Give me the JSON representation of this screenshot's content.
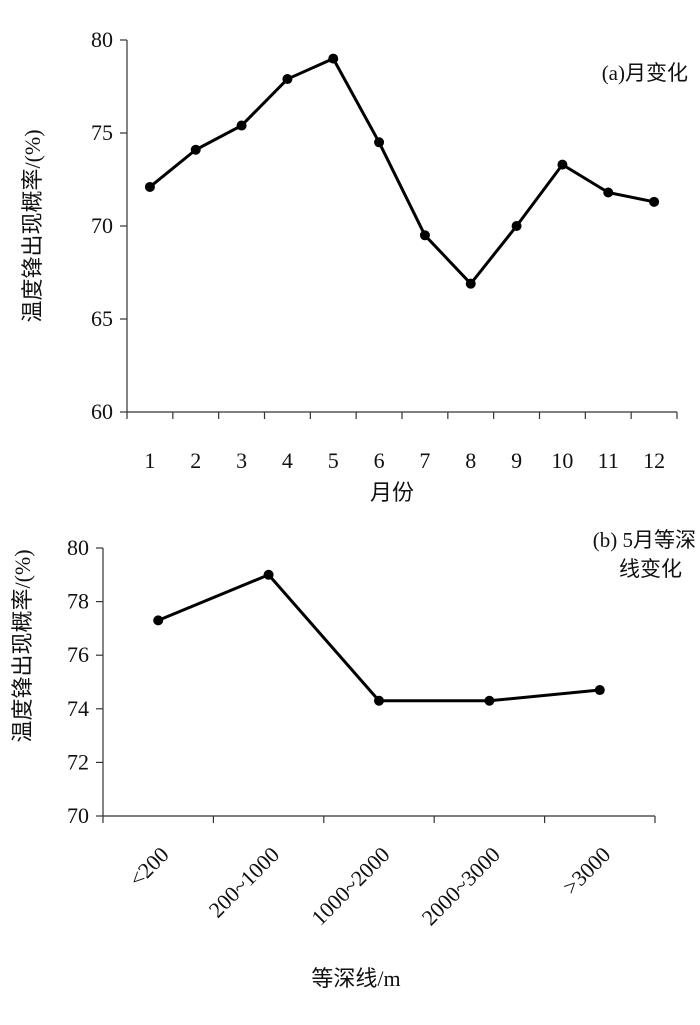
{
  "charts": [
    {
      "type": "line",
      "annotation": [
        "(a)月变化"
      ],
      "ylabel": "温度锋出现概率/(%)",
      "xlabel": "月份",
      "ylim": [
        60,
        80
      ],
      "yticks": [
        60,
        65,
        70,
        75,
        80
      ],
      "categories": [
        "1",
        "2",
        "3",
        "4",
        "5",
        "6",
        "7",
        "8",
        "9",
        "10",
        "11",
        "12"
      ],
      "values": [
        72.1,
        74.1,
        75.4,
        77.9,
        79.0,
        74.5,
        69.5,
        66.9,
        70.0,
        73.3,
        71.8,
        71.3
      ],
      "grid": false,
      "legend": false,
      "line_color": "#000000"
    },
    {
      "type": "line",
      "annotation": [
        "(b) 5月等深",
        "线变化"
      ],
      "ylabel": "温度锋出现概率/(%)",
      "xlabel": "等深线/m",
      "ylim": [
        70,
        80
      ],
      "yticks": [
        70,
        72,
        74,
        76,
        78,
        80
      ],
      "categories": [
        "<200",
        "200~1000",
        "1000~2000",
        "2000~3000",
        ">3000"
      ],
      "values": [
        77.3,
        79.0,
        74.3,
        74.3,
        74.7
      ],
      "grid": false,
      "legend": false,
      "line_color": "#000000"
    }
  ]
}
